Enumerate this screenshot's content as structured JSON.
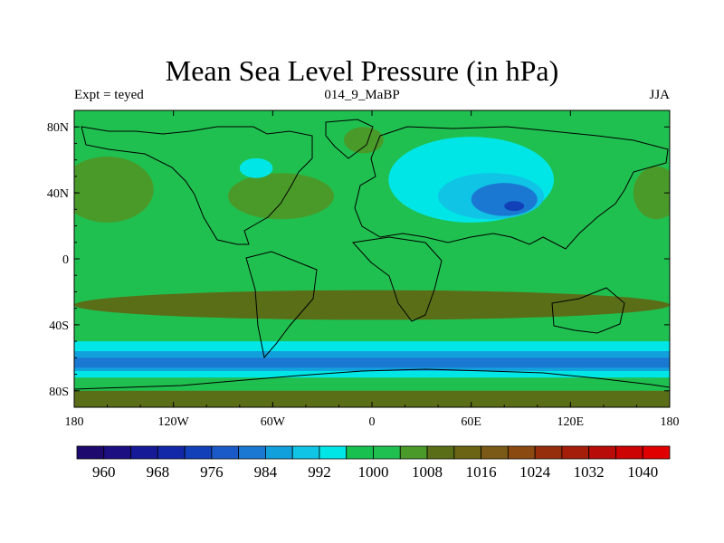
{
  "chart_data": {
    "type": "heatmap",
    "title": "Mean Sea Level Pressure (in hPa)",
    "subtitle_left": "Expt = teyed",
    "subtitle_center": "014_9_MaBP",
    "subtitle_right": "JJA",
    "x_range": [
      -180,
      180
    ],
    "y_range": [
      -90,
      90
    ],
    "x_ticks": [
      {
        "value": -180,
        "label": "180"
      },
      {
        "value": -120,
        "label": "120W"
      },
      {
        "value": -60,
        "label": "60W"
      },
      {
        "value": 0,
        "label": "0"
      },
      {
        "value": 60,
        "label": "60E"
      },
      {
        "value": 120,
        "label": "120E"
      },
      {
        "value": 180,
        "label": "180"
      }
    ],
    "y_ticks": [
      {
        "value": 80,
        "label": "80N"
      },
      {
        "value": 40,
        "label": "40N"
      },
      {
        "value": 0,
        "label": "0"
      },
      {
        "value": -40,
        "label": "40S"
      },
      {
        "value": -80,
        "label": "80S"
      }
    ],
    "colorbar": {
      "min": 956,
      "max": 1044,
      "step": 4,
      "colors": [
        "#1e0a6e",
        "#1c0f82",
        "#161a96",
        "#1228a8",
        "#1240b8",
        "#1a5ac8",
        "#1a78d2",
        "#12a0dc",
        "#10c4e6",
        "#00e6e6",
        "#18c050",
        "#20c050",
        "#4a9a2a",
        "#5a6e18",
        "#6a6414",
        "#7a5a16",
        "#8a4a10",
        "#962e0c",
        "#a41e0a",
        "#b80c08",
        "#cc0404",
        "#e00000"
      ],
      "tick_labels": [
        "960",
        "968",
        "976",
        "984",
        "992",
        "1000",
        "1008",
        "1016",
        "1024",
        "1032",
        "1040"
      ]
    },
    "regions": [
      {
        "name": "background",
        "level": 1008,
        "color": "#20c050"
      },
      {
        "name": "high-atlantic-north",
        "level": 1016,
        "lon": -55,
        "lat": 38,
        "lon_r": 32,
        "lat_r": 14,
        "color": "#4a9a2a"
      },
      {
        "name": "high-pacific-north",
        "level": 1016,
        "lon": -160,
        "lat": 42,
        "lon_r": 28,
        "lat_r": 20,
        "color": "#4a9a2a"
      },
      {
        "name": "high-pacific-east",
        "level": 1016,
        "lon": 172,
        "lat": 40,
        "lon_r": 14,
        "lat_r": 16,
        "color": "#4a9a2a"
      },
      {
        "name": "high-arctic-europe",
        "level": 1016,
        "lon": -5,
        "lat": 72,
        "lon_r": 12,
        "lat_r": 8,
        "color": "#4a9a2a"
      },
      {
        "name": "subtropical-high-belt",
        "level": 1016,
        "lon": 0,
        "lat": -28,
        "lon_r": 180,
        "lat_r": 9,
        "color": "#5a6e18"
      },
      {
        "name": "low-asia-outer",
        "level": 1000,
        "lon": 60,
        "lat": 48,
        "lon_r": 50,
        "lat_r": 26,
        "color": "#00e6e6"
      },
      {
        "name": "low-asia-mid",
        "level": 992,
        "lon": 72,
        "lat": 38,
        "lon_r": 32,
        "lat_r": 14,
        "color": "#10c4e6"
      },
      {
        "name": "low-asia-inner",
        "level": 984,
        "lon": 80,
        "lat": 36,
        "lon_r": 20,
        "lat_r": 10,
        "color": "#1a78d2"
      },
      {
        "name": "low-asia-core",
        "level": 976,
        "lon": 86,
        "lat": 32,
        "lon_r": 6,
        "lat_r": 3,
        "color": "#1240b8"
      },
      {
        "name": "low-north-pacific",
        "level": 1000,
        "lon": -70,
        "lat": 55,
        "lon_r": 10,
        "lat_r": 6,
        "color": "#00e6e6"
      },
      {
        "name": "southern-ocean-band-1000",
        "level": 1000,
        "lat_min": -72,
        "lat_max": -50,
        "color": "#00e6e6"
      },
      {
        "name": "southern-ocean-band-992",
        "level": 992,
        "lat_min": -68,
        "lat_max": -56,
        "color": "#12a0dc"
      },
      {
        "name": "southern-ocean-band-984",
        "level": 984,
        "lat_min": -66,
        "lat_max": -60,
        "color": "#1a78d2"
      },
      {
        "name": "antarctic-high",
        "level": 1016,
        "lat_min": -90,
        "lat_max": -80,
        "color": "#5a6e18"
      }
    ]
  }
}
